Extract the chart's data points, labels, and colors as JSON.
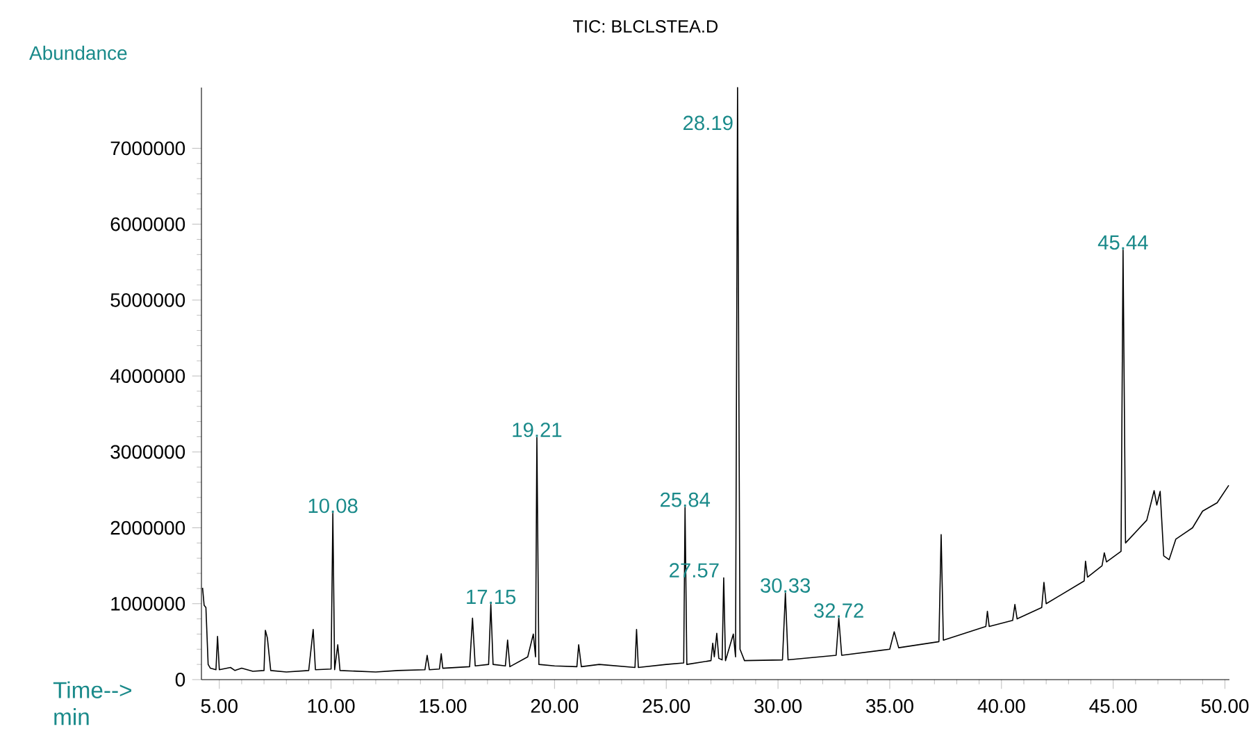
{
  "chart_data": {
    "type": "line",
    "title": "TIC: BLCLSTEA.D",
    "xlabel": "Time--> min",
    "ylabel": "Abundance",
    "xlim": [
      4.2,
      50.2
    ],
    "ylim": [
      0,
      7800000
    ],
    "xticks": [
      {
        "value": 5,
        "label": "5.00"
      },
      {
        "value": 10,
        "label": "10.00"
      },
      {
        "value": 15,
        "label": "15.00"
      },
      {
        "value": 20,
        "label": "20.00"
      },
      {
        "value": 25,
        "label": "25.00"
      },
      {
        "value": 30,
        "label": "30.00"
      },
      {
        "value": 35,
        "label": "35.00"
      },
      {
        "value": 40,
        "label": "40.00"
      },
      {
        "value": 45,
        "label": "45.00"
      },
      {
        "value": 50,
        "label": "50.00"
      }
    ],
    "yticks": [
      0,
      1000000,
      2000000,
      3000000,
      4000000,
      5000000,
      6000000,
      7000000
    ],
    "grid": false,
    "marker": "none",
    "line_style": "solid",
    "series": [
      {
        "color": "#000000",
        "x": [
          4.25,
          4.32,
          4.4,
          4.5,
          4.6,
          4.85,
          4.92,
          5.0,
          5.5,
          5.7,
          6.0,
          6.5,
          7.0,
          7.06,
          7.15,
          7.3,
          8.0,
          9.0,
          9.2,
          9.3,
          10.0,
          10.08,
          10.16,
          10.3,
          10.4,
          12.0,
          13.0,
          14.2,
          14.3,
          14.4,
          14.85,
          14.93,
          15.0,
          16.2,
          16.33,
          16.45,
          17.05,
          17.15,
          17.25,
          17.8,
          17.9,
          18.0,
          18.8,
          19.05,
          19.15,
          19.21,
          19.3,
          20.0,
          21.0,
          21.08,
          21.2,
          22.0,
          23.6,
          23.67,
          23.75,
          25.0,
          25.78,
          25.84,
          25.92,
          27.0,
          27.08,
          27.15,
          27.26,
          27.35,
          27.5,
          27.57,
          27.65,
          28.0,
          28.1,
          28.19,
          28.3,
          28.5,
          30.2,
          30.33,
          30.45,
          32.6,
          32.72,
          32.85,
          35.0,
          35.2,
          35.4,
          37.2,
          37.3,
          37.4,
          39.3,
          39.37,
          39.45,
          40.5,
          40.6,
          40.7,
          41.8,
          41.9,
          42.0,
          43.7,
          43.76,
          43.85,
          44.5,
          44.6,
          44.7,
          45.35,
          45.44,
          45.55,
          46.5,
          46.83,
          46.95,
          47.1,
          47.26,
          47.5,
          47.8,
          48.55,
          49.0,
          49.65,
          50.17
        ],
        "values": [
          1210000,
          980000,
          950000,
          200000,
          150000,
          130000,
          570000,
          130000,
          160000,
          120000,
          150000,
          110000,
          120000,
          650000,
          550000,
          120000,
          100000,
          120000,
          660000,
          130000,
          140000,
          2190000,
          130000,
          460000,
          120000,
          100000,
          120000,
          130000,
          320000,
          130000,
          140000,
          340000,
          150000,
          170000,
          810000,
          180000,
          200000,
          990000,
          200000,
          180000,
          520000,
          170000,
          300000,
          600000,
          300000,
          3190000,
          200000,
          180000,
          170000,
          460000,
          170000,
          200000,
          160000,
          660000,
          160000,
          200000,
          220000,
          2270000,
          200000,
          250000,
          480000,
          300000,
          610000,
          280000,
          260000,
          1340000,
          250000,
          600000,
          300000,
          7800000,
          400000,
          250000,
          260000,
          1140000,
          260000,
          320000,
          810000,
          320000,
          400000,
          630000,
          420000,
          500000,
          1910000,
          520000,
          700000,
          900000,
          700000,
          780000,
          990000,
          800000,
          950000,
          1280000,
          1000000,
          1300000,
          1560000,
          1350000,
          1500000,
          1670000,
          1550000,
          1690000,
          5660000,
          1800000,
          2100000,
          2490000,
          2300000,
          2480000,
          1630000,
          1580000,
          1850000,
          2000000,
          2220000,
          2330000,
          2560000
        ]
      }
    ],
    "annotations": [
      {
        "text": "10.08",
        "x": 10.08,
        "y": 2190000
      },
      {
        "text": "17.15",
        "x": 17.15,
        "y": 990000
      },
      {
        "text": "19.21",
        "x": 19.21,
        "y": 3190000
      },
      {
        "text": "25.84",
        "x": 25.84,
        "y": 2270000
      },
      {
        "text": "27.57",
        "x": 27.57,
        "y": 1340000
      },
      {
        "text": "28.19",
        "x": 28.19,
        "y": 7800000
      },
      {
        "text": "30.33",
        "x": 30.33,
        "y": 1140000
      },
      {
        "text": "32.72",
        "x": 32.72,
        "y": 810000
      },
      {
        "text": "45.44",
        "x": 45.44,
        "y": 5660000
      }
    ]
  }
}
